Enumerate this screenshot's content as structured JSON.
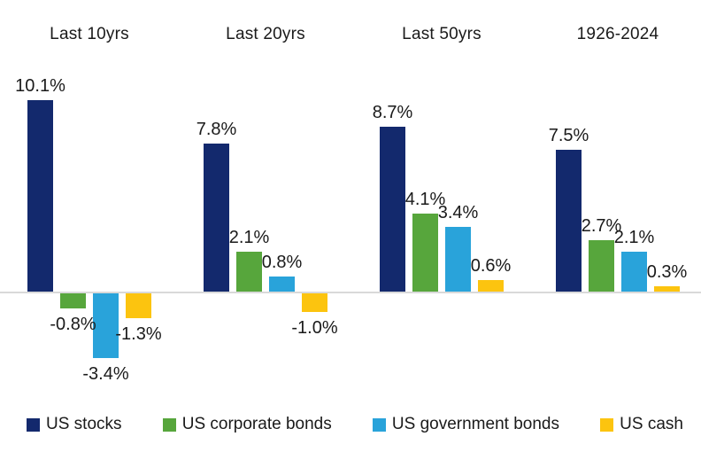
{
  "chart_data": {
    "type": "bar",
    "categories": [
      "Last 10yrs",
      "Last 20yrs",
      "Last 50yrs",
      "1926-2024"
    ],
    "series": [
      {
        "name": "US stocks",
        "color": "#13296d",
        "values": [
          10.1,
          7.8,
          8.7,
          7.5
        ],
        "labels": [
          "10.1%",
          "7.8%",
          "8.7%",
          "7.5%"
        ]
      },
      {
        "name": "US corporate bonds",
        "color": "#57a63c",
        "values": [
          -0.8,
          2.1,
          4.1,
          2.7
        ],
        "labels": [
          "-0.8%",
          "2.1%",
          "4.1%",
          "2.7%"
        ]
      },
      {
        "name": "US government bonds",
        "color": "#29a3da",
        "values": [
          -3.4,
          0.8,
          3.4,
          2.1
        ],
        "labels": [
          "-3.4%",
          "0.8%",
          "3.4%",
          "2.1%"
        ]
      },
      {
        "name": "US cash",
        "color": "#fcc40f",
        "values": [
          -1.3,
          -1.0,
          0.6,
          0.3
        ],
        "labels": [
          "-1.3%",
          "-1.0%",
          "0.6%",
          "0.3%"
        ]
      }
    ],
    "title": "",
    "xlabel": "",
    "ylabel": "",
    "grid": false,
    "axis_line_color": "#d9d9d9",
    "text_color": "#1a1a1a",
    "legend_position": "bottom",
    "value_labels_shown": true
  }
}
